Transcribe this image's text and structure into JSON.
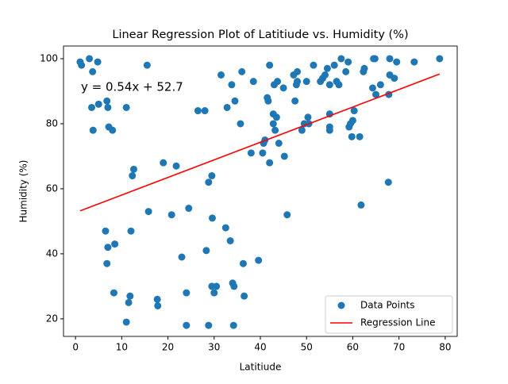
{
  "chart_data": {
    "type": "scatter",
    "title": "Linear Regression Plot of Latitiude vs. Humidity (%)",
    "x_label": "Latitiude",
    "y_label": "Humidity (%)",
    "annotation": {
      "text": "y = 0.54x + 52.7",
      "color": "red"
    },
    "xlim": [
      -2.6,
      82.6
    ],
    "ylim": [
      14.6,
      103.9
    ],
    "xticks": [
      0,
      10,
      20,
      30,
      40,
      50,
      60,
      70,
      80
    ],
    "yticks": [
      20,
      40,
      60,
      80,
      100
    ],
    "grid": false,
    "legend": "lower right",
    "series": [
      {
        "name": "Data Points",
        "color": "#1f77b4",
        "type": "scatter",
        "x": [
          1,
          1.3,
          3,
          4.8,
          3.5,
          3.8,
          3.7,
          5,
          6.8,
          7,
          7.2,
          8,
          11,
          15.5,
          6.5,
          7,
          6.8,
          8.5,
          8.3,
          11.5,
          11.8,
          11,
          12,
          12.3,
          12.6,
          15.8,
          17.7,
          17.8,
          19,
          20.8,
          21.8,
          23,
          24,
          24,
          24.5,
          26.5,
          28,
          28.3,
          28.8,
          28.8,
          29.5,
          29.6,
          29.5,
          30,
          30.5,
          31.5,
          32.5,
          32.8,
          33.5,
          33.8,
          34,
          34.3,
          34.2,
          34.5,
          35.7,
          36,
          36.3,
          36.5,
          38,
          38.5,
          39.6,
          40.5,
          40.7,
          41,
          41.5,
          41.7,
          42,
          42,
          42.8,
          42.8,
          43,
          43.2,
          43.5,
          43.7,
          44,
          45,
          45.2,
          45.8,
          47.2,
          47.5,
          47.8,
          48,
          48,
          49,
          49.5,
          50,
          50.3,
          50.5,
          51.5,
          53,
          53.5,
          54,
          54.5,
          55,
          55,
          55,
          55,
          56,
          56.5,
          57,
          57.5,
          58.5,
          59,
          59.2,
          59.5,
          59.8,
          60,
          60.3,
          61.5,
          61.8,
          62.3,
          62.5,
          64.3,
          64.5,
          64.8,
          65,
          66,
          67.7,
          67.8,
          68,
          68,
          69,
          69.5,
          73.3,
          78.8
        ],
        "values": [
          99,
          98,
          100,
          99,
          85,
          78,
          96,
          86,
          87,
          85,
          79,
          78,
          85,
          98,
          47,
          42,
          37,
          43,
          28,
          25,
          27,
          19,
          47,
          64,
          66,
          53,
          26,
          24,
          68,
          52,
          67,
          39,
          18,
          28,
          54,
          84,
          84,
          41,
          18,
          62,
          64,
          51,
          30,
          28,
          30,
          95,
          48,
          85,
          44,
          92,
          31,
          30,
          18,
          87,
          80,
          96,
          37,
          27,
          71,
          93,
          38,
          71,
          74,
          75,
          88,
          87,
          98,
          68,
          83,
          80,
          92,
          78,
          82,
          93,
          74,
          91,
          70,
          52,
          95,
          87,
          92,
          93,
          96,
          78,
          80,
          93,
          82,
          80,
          98,
          93,
          94,
          95,
          97,
          92,
          79,
          78,
          83,
          98,
          93,
          92,
          100,
          96,
          99,
          79,
          80,
          76,
          81,
          84,
          76,
          55,
          96,
          97,
          91,
          100,
          100,
          89,
          92,
          62,
          89,
          100,
          95,
          94,
          99,
          99,
          100
        ]
      },
      {
        "name": "Regression Line",
        "color": "red",
        "type": "line",
        "x": [
          1,
          78.8
        ],
        "values": [
          53.2,
          95.3
        ]
      }
    ]
  }
}
